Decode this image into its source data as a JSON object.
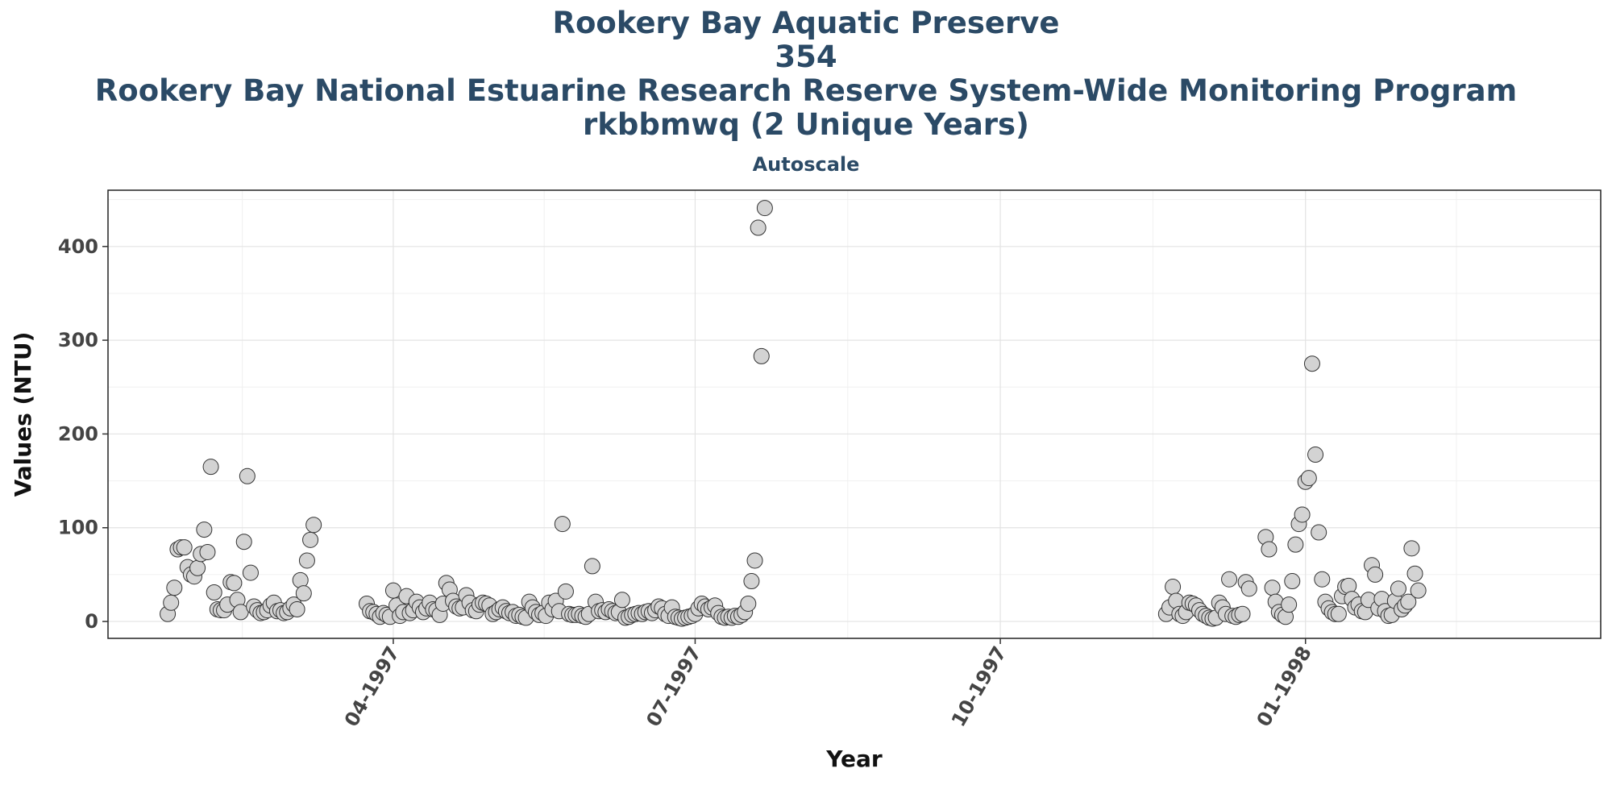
{
  "chart_data": {
    "type": "scatter",
    "title_lines": [
      "Rookery Bay Aquatic Preserve",
      "354",
      "Rookery Bay National Estuarine Research Reserve System-Wide Monitoring Program",
      "rkbbmwq (2 Unique Years)"
    ],
    "subtitle": "Autoscale",
    "xlabel": "Year",
    "ylabel": "Values (NTU)",
    "x_range": [
      "1997-01-05",
      "1998-03-31"
    ],
    "ylim": [
      -18,
      460
    ],
    "yticks": [
      0,
      100,
      200,
      300,
      400
    ],
    "xticks": [
      {
        "date": "1997-04-01",
        "label": "04-1997"
      },
      {
        "date": "1997-07-01",
        "label": "07-1997"
      },
      {
        "date": "1997-10-01",
        "label": "10-1997"
      },
      {
        "date": "1998-01-01",
        "label": "01-1998"
      }
    ],
    "grid": true,
    "point_color": "#d3d3d3",
    "point_edge": "#333333",
    "points": [
      [
        "1997-01-23",
        8
      ],
      [
        "1997-01-24",
        20
      ],
      [
        "1997-01-25",
        36
      ],
      [
        "1997-01-26",
        77
      ],
      [
        "1997-01-27",
        79
      ],
      [
        "1997-01-28",
        79
      ],
      [
        "1997-01-29",
        58
      ],
      [
        "1997-01-30",
        50
      ],
      [
        "1997-01-31",
        48
      ],
      [
        "1997-02-01",
        57
      ],
      [
        "1997-02-02",
        72
      ],
      [
        "1997-02-03",
        98
      ],
      [
        "1997-02-04",
        74
      ],
      [
        "1997-02-05",
        165
      ],
      [
        "1997-02-06",
        31
      ],
      [
        "1997-02-07",
        13
      ],
      [
        "1997-02-08",
        12
      ],
      [
        "1997-02-09",
        12
      ],
      [
        "1997-02-10",
        18
      ],
      [
        "1997-02-11",
        42
      ],
      [
        "1997-02-12",
        41
      ],
      [
        "1997-02-13",
        23
      ],
      [
        "1997-02-14",
        10
      ],
      [
        "1997-02-15",
        85
      ],
      [
        "1997-02-16",
        155
      ],
      [
        "1997-02-17",
        52
      ],
      [
        "1997-02-18",
        16
      ],
      [
        "1997-02-19",
        12
      ],
      [
        "1997-02-20",
        9
      ],
      [
        "1997-02-21",
        10
      ],
      [
        "1997-02-22",
        12
      ],
      [
        "1997-02-23",
        17
      ],
      [
        "1997-02-24",
        20
      ],
      [
        "1997-02-25",
        11
      ],
      [
        "1997-02-26",
        12
      ],
      [
        "1997-02-27",
        9
      ],
      [
        "1997-02-28",
        10
      ],
      [
        "1997-03-01",
        14
      ],
      [
        "1997-03-02",
        18
      ],
      [
        "1997-03-03",
        13
      ],
      [
        "1997-03-04",
        44
      ],
      [
        "1997-03-05",
        30
      ],
      [
        "1997-03-06",
        65
      ],
      [
        "1997-03-07",
        87
      ],
      [
        "1997-03-08",
        103
      ],
      [
        "1997-03-24",
        19
      ],
      [
        "1997-03-25",
        11
      ],
      [
        "1997-03-26",
        10
      ],
      [
        "1997-03-27",
        8
      ],
      [
        "1997-03-28",
        5
      ],
      [
        "1997-03-29",
        9
      ],
      [
        "1997-03-30",
        7
      ],
      [
        "1997-03-31",
        5
      ],
      [
        "1997-04-01",
        33
      ],
      [
        "1997-04-02",
        17
      ],
      [
        "1997-04-03",
        6
      ],
      [
        "1997-04-04",
        10
      ],
      [
        "1997-04-05",
        27
      ],
      [
        "1997-04-06",
        9
      ],
      [
        "1997-04-07",
        12
      ],
      [
        "1997-04-08",
        21
      ],
      [
        "1997-04-09",
        15
      ],
      [
        "1997-04-10",
        10
      ],
      [
        "1997-04-11",
        14
      ],
      [
        "1997-04-12",
        20
      ],
      [
        "1997-04-13",
        13
      ],
      [
        "1997-04-14",
        12
      ],
      [
        "1997-04-15",
        7
      ],
      [
        "1997-04-16",
        19
      ],
      [
        "1997-04-17",
        41
      ],
      [
        "1997-04-18",
        34
      ],
      [
        "1997-04-19",
        22
      ],
      [
        "1997-04-20",
        16
      ],
      [
        "1997-04-21",
        14
      ],
      [
        "1997-04-22",
        15
      ],
      [
        "1997-04-23",
        28
      ],
      [
        "1997-04-24",
        20
      ],
      [
        "1997-04-25",
        12
      ],
      [
        "1997-04-26",
        11
      ],
      [
        "1997-04-27",
        18
      ],
      [
        "1997-04-28",
        20
      ],
      [
        "1997-04-29",
        19
      ],
      [
        "1997-04-30",
        17
      ],
      [
        "1997-05-01",
        8
      ],
      [
        "1997-05-02",
        10
      ],
      [
        "1997-05-03",
        13
      ],
      [
        "1997-05-04",
        15
      ],
      [
        "1997-05-05",
        11
      ],
      [
        "1997-05-06",
        9
      ],
      [
        "1997-05-07",
        10
      ],
      [
        "1997-05-08",
        6
      ],
      [
        "1997-05-09",
        7
      ],
      [
        "1997-05-10",
        5
      ],
      [
        "1997-05-11",
        4
      ],
      [
        "1997-05-12",
        21
      ],
      [
        "1997-05-13",
        15
      ],
      [
        "1997-05-14",
        10
      ],
      [
        "1997-05-15",
        7
      ],
      [
        "1997-05-16",
        9
      ],
      [
        "1997-05-17",
        6
      ],
      [
        "1997-05-18",
        20
      ],
      [
        "1997-05-19",
        13
      ],
      [
        "1997-05-20",
        22
      ],
      [
        "1997-05-21",
        11
      ],
      [
        "1997-05-22",
        104
      ],
      [
        "1997-05-23",
        32
      ],
      [
        "1997-05-24",
        8
      ],
      [
        "1997-05-25",
        7
      ],
      [
        "1997-05-26",
        7
      ],
      [
        "1997-05-27",
        8
      ],
      [
        "1997-05-28",
        6
      ],
      [
        "1997-05-29",
        5
      ],
      [
        "1997-05-30",
        8
      ],
      [
        "1997-05-31",
        59
      ],
      [
        "1997-06-01",
        21
      ],
      [
        "1997-06-02",
        11
      ],
      [
        "1997-06-03",
        12
      ],
      [
        "1997-06-04",
        10
      ],
      [
        "1997-06-05",
        13
      ],
      [
        "1997-06-06",
        11
      ],
      [
        "1997-06-07",
        9
      ],
      [
        "1997-06-08",
        10
      ],
      [
        "1997-06-09",
        23
      ],
      [
        "1997-06-10",
        4
      ],
      [
        "1997-06-11",
        5
      ],
      [
        "1997-06-12",
        7
      ],
      [
        "1997-06-13",
        8
      ],
      [
        "1997-06-14",
        9
      ],
      [
        "1997-06-15",
        8
      ],
      [
        "1997-06-16",
        10
      ],
      [
        "1997-06-17",
        11
      ],
      [
        "1997-06-18",
        9
      ],
      [
        "1997-06-19",
        12
      ],
      [
        "1997-06-20",
        16
      ],
      [
        "1997-06-21",
        14
      ],
      [
        "1997-06-22",
        8
      ],
      [
        "1997-06-23",
        6
      ],
      [
        "1997-06-24",
        15
      ],
      [
        "1997-06-25",
        5
      ],
      [
        "1997-06-26",
        4
      ],
      [
        "1997-06-27",
        3
      ],
      [
        "1997-06-28",
        4
      ],
      [
        "1997-06-29",
        5
      ],
      [
        "1997-06-30",
        6
      ],
      [
        "1997-07-01",
        8
      ],
      [
        "1997-07-02",
        14
      ],
      [
        "1997-07-03",
        19
      ],
      [
        "1997-07-04",
        16
      ],
      [
        "1997-07-05",
        13
      ],
      [
        "1997-07-06",
        15
      ],
      [
        "1997-07-07",
        17
      ],
      [
        "1997-07-08",
        9
      ],
      [
        "1997-07-09",
        5
      ],
      [
        "1997-07-10",
        4
      ],
      [
        "1997-07-11",
        5
      ],
      [
        "1997-07-12",
        4
      ],
      [
        "1997-07-13",
        6
      ],
      [
        "1997-07-14",
        5
      ],
      [
        "1997-07-15",
        7
      ],
      [
        "1997-07-16",
        10
      ],
      [
        "1997-07-17",
        19
      ],
      [
        "1997-07-18",
        43
      ],
      [
        "1997-07-19",
        65
      ],
      [
        "1997-07-20",
        420
      ],
      [
        "1997-07-21",
        283
      ],
      [
        "1997-07-22",
        441
      ],
      [
        "1997-11-20",
        8
      ],
      [
        "1997-11-21",
        15
      ],
      [
        "1997-11-22",
        37
      ],
      [
        "1997-11-23",
        22
      ],
      [
        "1997-11-24",
        8
      ],
      [
        "1997-11-25",
        6
      ],
      [
        "1997-11-26",
        10
      ],
      [
        "1997-11-27",
        20
      ],
      [
        "1997-11-28",
        19
      ],
      [
        "1997-11-29",
        17
      ],
      [
        "1997-11-30",
        12
      ],
      [
        "1997-12-01",
        8
      ],
      [
        "1997-12-02",
        6
      ],
      [
        "1997-12-03",
        4
      ],
      [
        "1997-12-04",
        3
      ],
      [
        "1997-12-05",
        4
      ],
      [
        "1997-12-06",
        20
      ],
      [
        "1997-12-07",
        15
      ],
      [
        "1997-12-08",
        8
      ],
      [
        "1997-12-09",
        45
      ],
      [
        "1997-12-10",
        6
      ],
      [
        "1997-12-11",
        5
      ],
      [
        "1997-12-12",
        7
      ],
      [
        "1997-12-13",
        8
      ],
      [
        "1997-12-14",
        42
      ],
      [
        "1997-12-15",
        35
      ],
      [
        "1997-12-20",
        90
      ],
      [
        "1997-12-21",
        77
      ],
      [
        "1997-12-22",
        36
      ],
      [
        "1997-12-23",
        21
      ],
      [
        "1997-12-24",
        10
      ],
      [
        "1997-12-25",
        7
      ],
      [
        "1997-12-26",
        5
      ],
      [
        "1997-12-27",
        18
      ],
      [
        "1997-12-28",
        43
      ],
      [
        "1997-12-29",
        82
      ],
      [
        "1997-12-30",
        104
      ],
      [
        "1997-12-31",
        114
      ],
      [
        "1998-01-01",
        149
      ],
      [
        "1998-01-02",
        153
      ],
      [
        "1998-01-03",
        275
      ],
      [
        "1998-01-04",
        178
      ],
      [
        "1998-01-05",
        95
      ],
      [
        "1998-01-06",
        45
      ],
      [
        "1998-01-07",
        21
      ],
      [
        "1998-01-08",
        14
      ],
      [
        "1998-01-09",
        10
      ],
      [
        "1998-01-10",
        8
      ],
      [
        "1998-01-11",
        8
      ],
      [
        "1998-01-12",
        27
      ],
      [
        "1998-01-13",
        37
      ],
      [
        "1998-01-14",
        38
      ],
      [
        "1998-01-15",
        24
      ],
      [
        "1998-01-16",
        15
      ],
      [
        "1998-01-17",
        18
      ],
      [
        "1998-01-18",
        11
      ],
      [
        "1998-01-19",
        10
      ],
      [
        "1998-01-20",
        23
      ],
      [
        "1998-01-21",
        60
      ],
      [
        "1998-01-22",
        50
      ],
      [
        "1998-01-23",
        14
      ],
      [
        "1998-01-24",
        24
      ],
      [
        "1998-01-25",
        11
      ],
      [
        "1998-01-26",
        6
      ],
      [
        "1998-01-27",
        7
      ],
      [
        "1998-01-28",
        22
      ],
      [
        "1998-01-29",
        35
      ],
      [
        "1998-01-30",
        13
      ],
      [
        "1998-01-31",
        17
      ],
      [
        "1998-02-01",
        21
      ],
      [
        "1998-02-02",
        78
      ],
      [
        "1998-02-03",
        51
      ],
      [
        "1998-02-04",
        33
      ]
    ]
  }
}
